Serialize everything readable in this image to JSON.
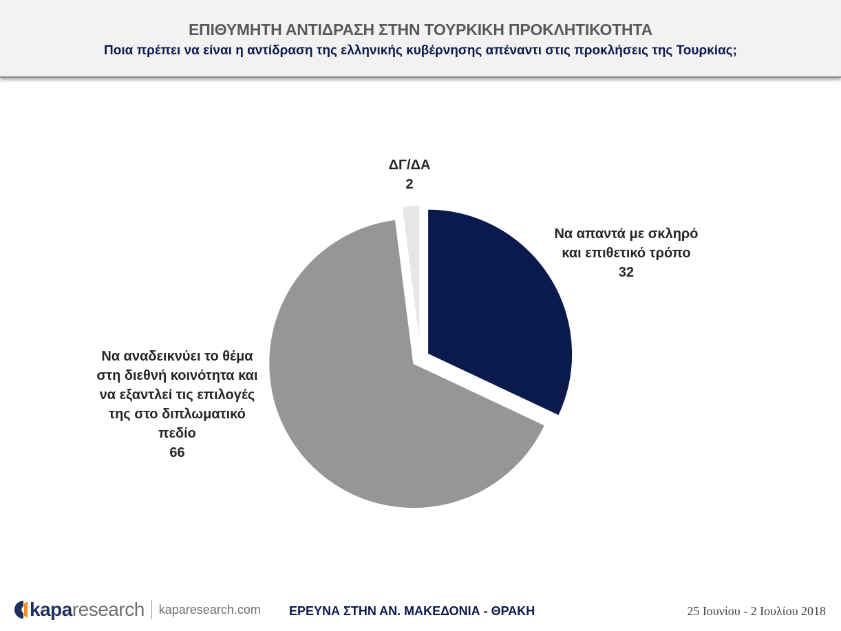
{
  "header": {
    "title": "ΕΠΙΘΥΜΗΤΗ ΑΝΤΙΔΡΑΣΗ ΣΤΗΝ ΤΟΥΡΚΙΚΗ ΠΡΟΚΛΗΤΙΚΟΤΗΤΑ",
    "subtitle": "Ποια πρέπει να είναι η αντίδραση της ελληνικής κυβέρνησης απέναντι στις προκλήσεις της Τουρκίας;"
  },
  "chart_data": {
    "type": "pie",
    "title": "ΕΠΙΘΥΜΗΤΗ ΑΝΤΙΔΡΑΣΗ ΣΤΗΝ ΤΟΥΡΚΙΚΗ ΠΡΟΚΛΗΤΙΚΟΤΗΤΑ",
    "subtitle": "Ποια πρέπει να είναι η αντίδραση της ελληνικής κυβέρνησης απέναντι στις προκλήσεις της Τουρκίας;",
    "start": "12 o'clock",
    "direction": "clockwise",
    "exploded": true,
    "slices": [
      {
        "label_lines": [
          "Να απαντά με σκληρό",
          "και επιθετικό τρόπο"
        ],
        "value": 32,
        "color": "#0b1a4d"
      },
      {
        "label_lines": [
          "Να αναδεικνύει το θέμα",
          "στη διεθνή κοινότητα και",
          "να εξαντλεί τις επιλογές",
          "της στο διπλωματικό",
          "πεδίο"
        ],
        "value": 66,
        "color": "#969696"
      },
      {
        "label_lines": [
          "ΔΓ/ΔΑ"
        ],
        "value": 2,
        "color": "#e6e6e6"
      }
    ]
  },
  "footer": {
    "brand_bold": "kapa",
    "brand_rest": "research",
    "site": "kaparesearch.com",
    "center": "ΕΡΕΥΝΑ ΣΤΗΝ ΑΝ. ΜΑΚΕΔΟΝΙΑ - ΘΡΑΚΗ",
    "date": "25 Ιουνίου - 2 Ιουλίου 2018"
  }
}
